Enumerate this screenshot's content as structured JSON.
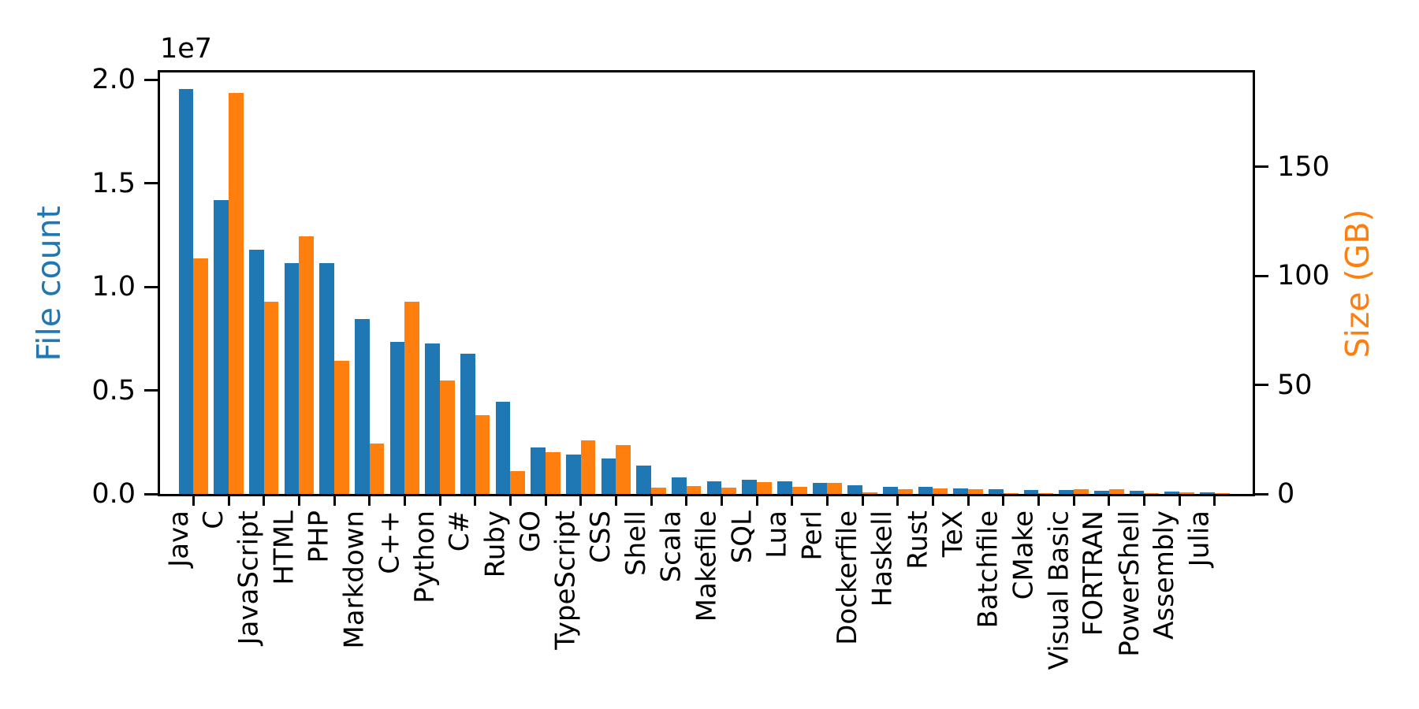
{
  "figure": {
    "background": "#ffffff",
    "offset_text": "1e7",
    "left_axis_label": "File count",
    "right_axis_label": "Size (GB)",
    "left_axis_color": "#1f77b4",
    "right_axis_color": "#ff7f0e",
    "left_tick_labels": [
      "0.0",
      "0.5",
      "1.0",
      "1.5",
      "2.0"
    ],
    "right_tick_labels": [
      "0",
      "50",
      "100",
      "150"
    ]
  },
  "chart_data": {
    "type": "bar",
    "title": "",
    "categories": [
      "Java",
      "C",
      "JavaScript",
      "HTML",
      "PHP",
      "Markdown",
      "C++",
      "Python",
      "C#",
      "Ruby",
      "GO",
      "TypeScript",
      "CSS",
      "Shell",
      "Scala",
      "Makefile",
      "SQL",
      "Lua",
      "Perl",
      "Dockerfile",
      "Haskell",
      "Rust",
      "TeX",
      "Batchfile",
      "CMake",
      "Visual Basic",
      "FORTRAN",
      "PowerShell",
      "Assembly",
      "Julia"
    ],
    "series": [
      {
        "name": "File count",
        "axis": "left",
        "color": "#1f77b4",
        "values": [
          19550000,
          14200000,
          11800000,
          11150000,
          11150000,
          8450000,
          7350000,
          7270000,
          6770000,
          4450000,
          2240000,
          1900000,
          1710000,
          1370000,
          800000,
          610000,
          680000,
          600000,
          550000,
          400000,
          360000,
          330000,
          260000,
          240000,
          190000,
          200000,
          160000,
          160000,
          105000,
          60000
        ]
      },
      {
        "name": "Size (GB)",
        "axis": "right",
        "color": "#ff7f0e",
        "values": [
          108,
          184,
          88,
          118,
          61,
          23,
          88,
          52,
          36,
          10.5,
          19,
          24.5,
          22.5,
          3,
          3.6,
          2.9,
          5.4,
          3.2,
          5,
          0.6,
          2.1,
          2.4,
          2.2,
          0.3,
          0.25,
          2.1,
          2.1,
          0.3,
          0.9,
          0.3
        ]
      }
    ],
    "xlabel": "",
    "left_ylabel": "File count",
    "right_ylabel": "Size (GB)",
    "left_ylim": [
      0,
      20350000
    ],
    "right_ylim": [
      0,
      193.3
    ],
    "left_ticks": [
      0,
      5000000,
      10000000,
      15000000,
      20000000
    ],
    "right_ticks": [
      0,
      50,
      100,
      150
    ],
    "left_offset_text": "1e7",
    "grid": false,
    "legend": "none",
    "x_tick_rotation": 90
  }
}
